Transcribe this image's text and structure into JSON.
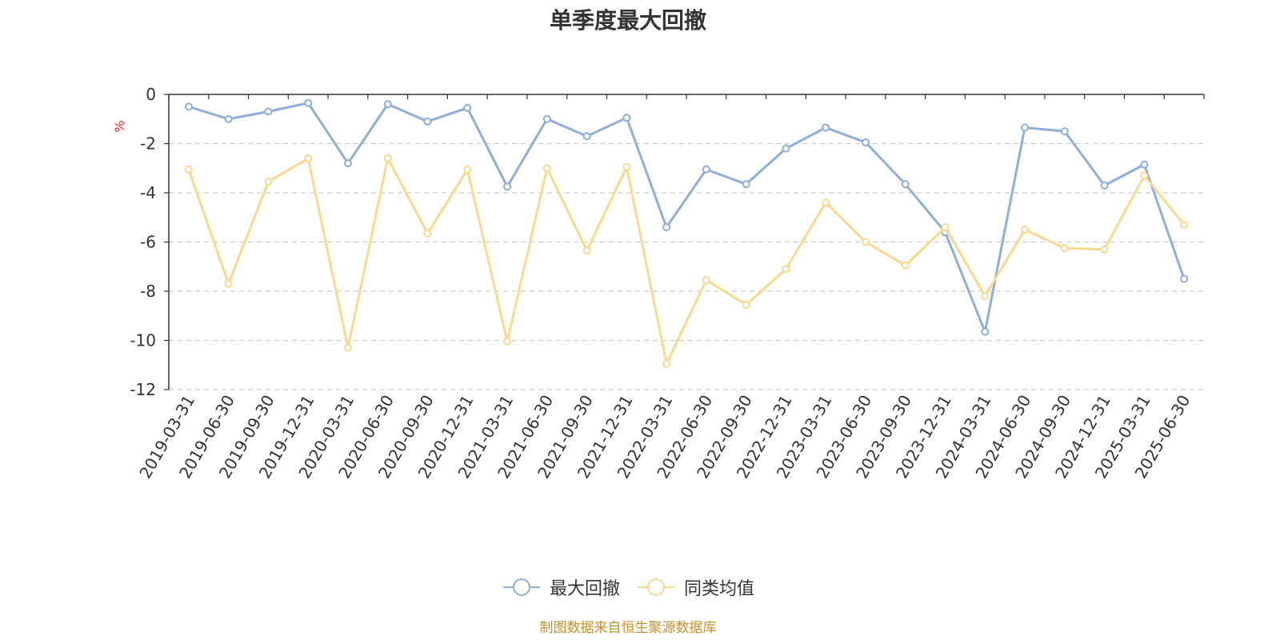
{
  "chart_data": {
    "type": "line",
    "title": "单季度最大回撤",
    "ylabel": "%",
    "ylim": [
      -12,
      0
    ],
    "yticks": [
      0,
      -2,
      -4,
      -6,
      -8,
      -10,
      -12
    ],
    "grid": true,
    "legend_position": "bottom",
    "categories": [
      "2019-03-31",
      "2019-06-30",
      "2019-09-30",
      "2019-12-31",
      "2020-03-31",
      "2020-06-30",
      "2020-09-30",
      "2020-12-31",
      "2021-03-31",
      "2021-06-30",
      "2021-09-30",
      "2021-12-31",
      "2022-03-31",
      "2022-06-30",
      "2022-09-30",
      "2022-12-31",
      "2023-03-31",
      "2023-06-30",
      "2023-09-30",
      "2023-12-31",
      "2024-03-31",
      "2024-06-30",
      "2024-09-30",
      "2024-12-31",
      "2025-03-31",
      "2025-06-30"
    ],
    "series": [
      {
        "name": "最大回撤",
        "color": "#8eaedb",
        "values": [
          -0.5,
          -1.0,
          -0.7,
          -0.35,
          -2.8,
          -0.4,
          -1.1,
          -0.55,
          -3.75,
          -1.0,
          -1.7,
          -0.95,
          -5.4,
          -3.05,
          -3.65,
          -2.2,
          -1.35,
          -1.95,
          -3.65,
          -5.6,
          -9.65,
          -1.35,
          -1.5,
          -3.7,
          -2.85,
          -7.5
        ]
      },
      {
        "name": "同类均值",
        "color": "#fcd88f",
        "values": [
          -3.05,
          -7.7,
          -3.55,
          -2.6,
          -10.3,
          -2.6,
          -5.65,
          -3.05,
          -10.05,
          -3.0,
          -6.35,
          -2.95,
          -10.95,
          -7.55,
          -8.55,
          -7.1,
          -4.4,
          -6.0,
          -6.95,
          -5.4,
          -8.2,
          -5.5,
          -6.25,
          -6.3,
          -3.3,
          -5.3
        ]
      }
    ]
  },
  "source_text": "制图数据来自恒生聚源数据库"
}
